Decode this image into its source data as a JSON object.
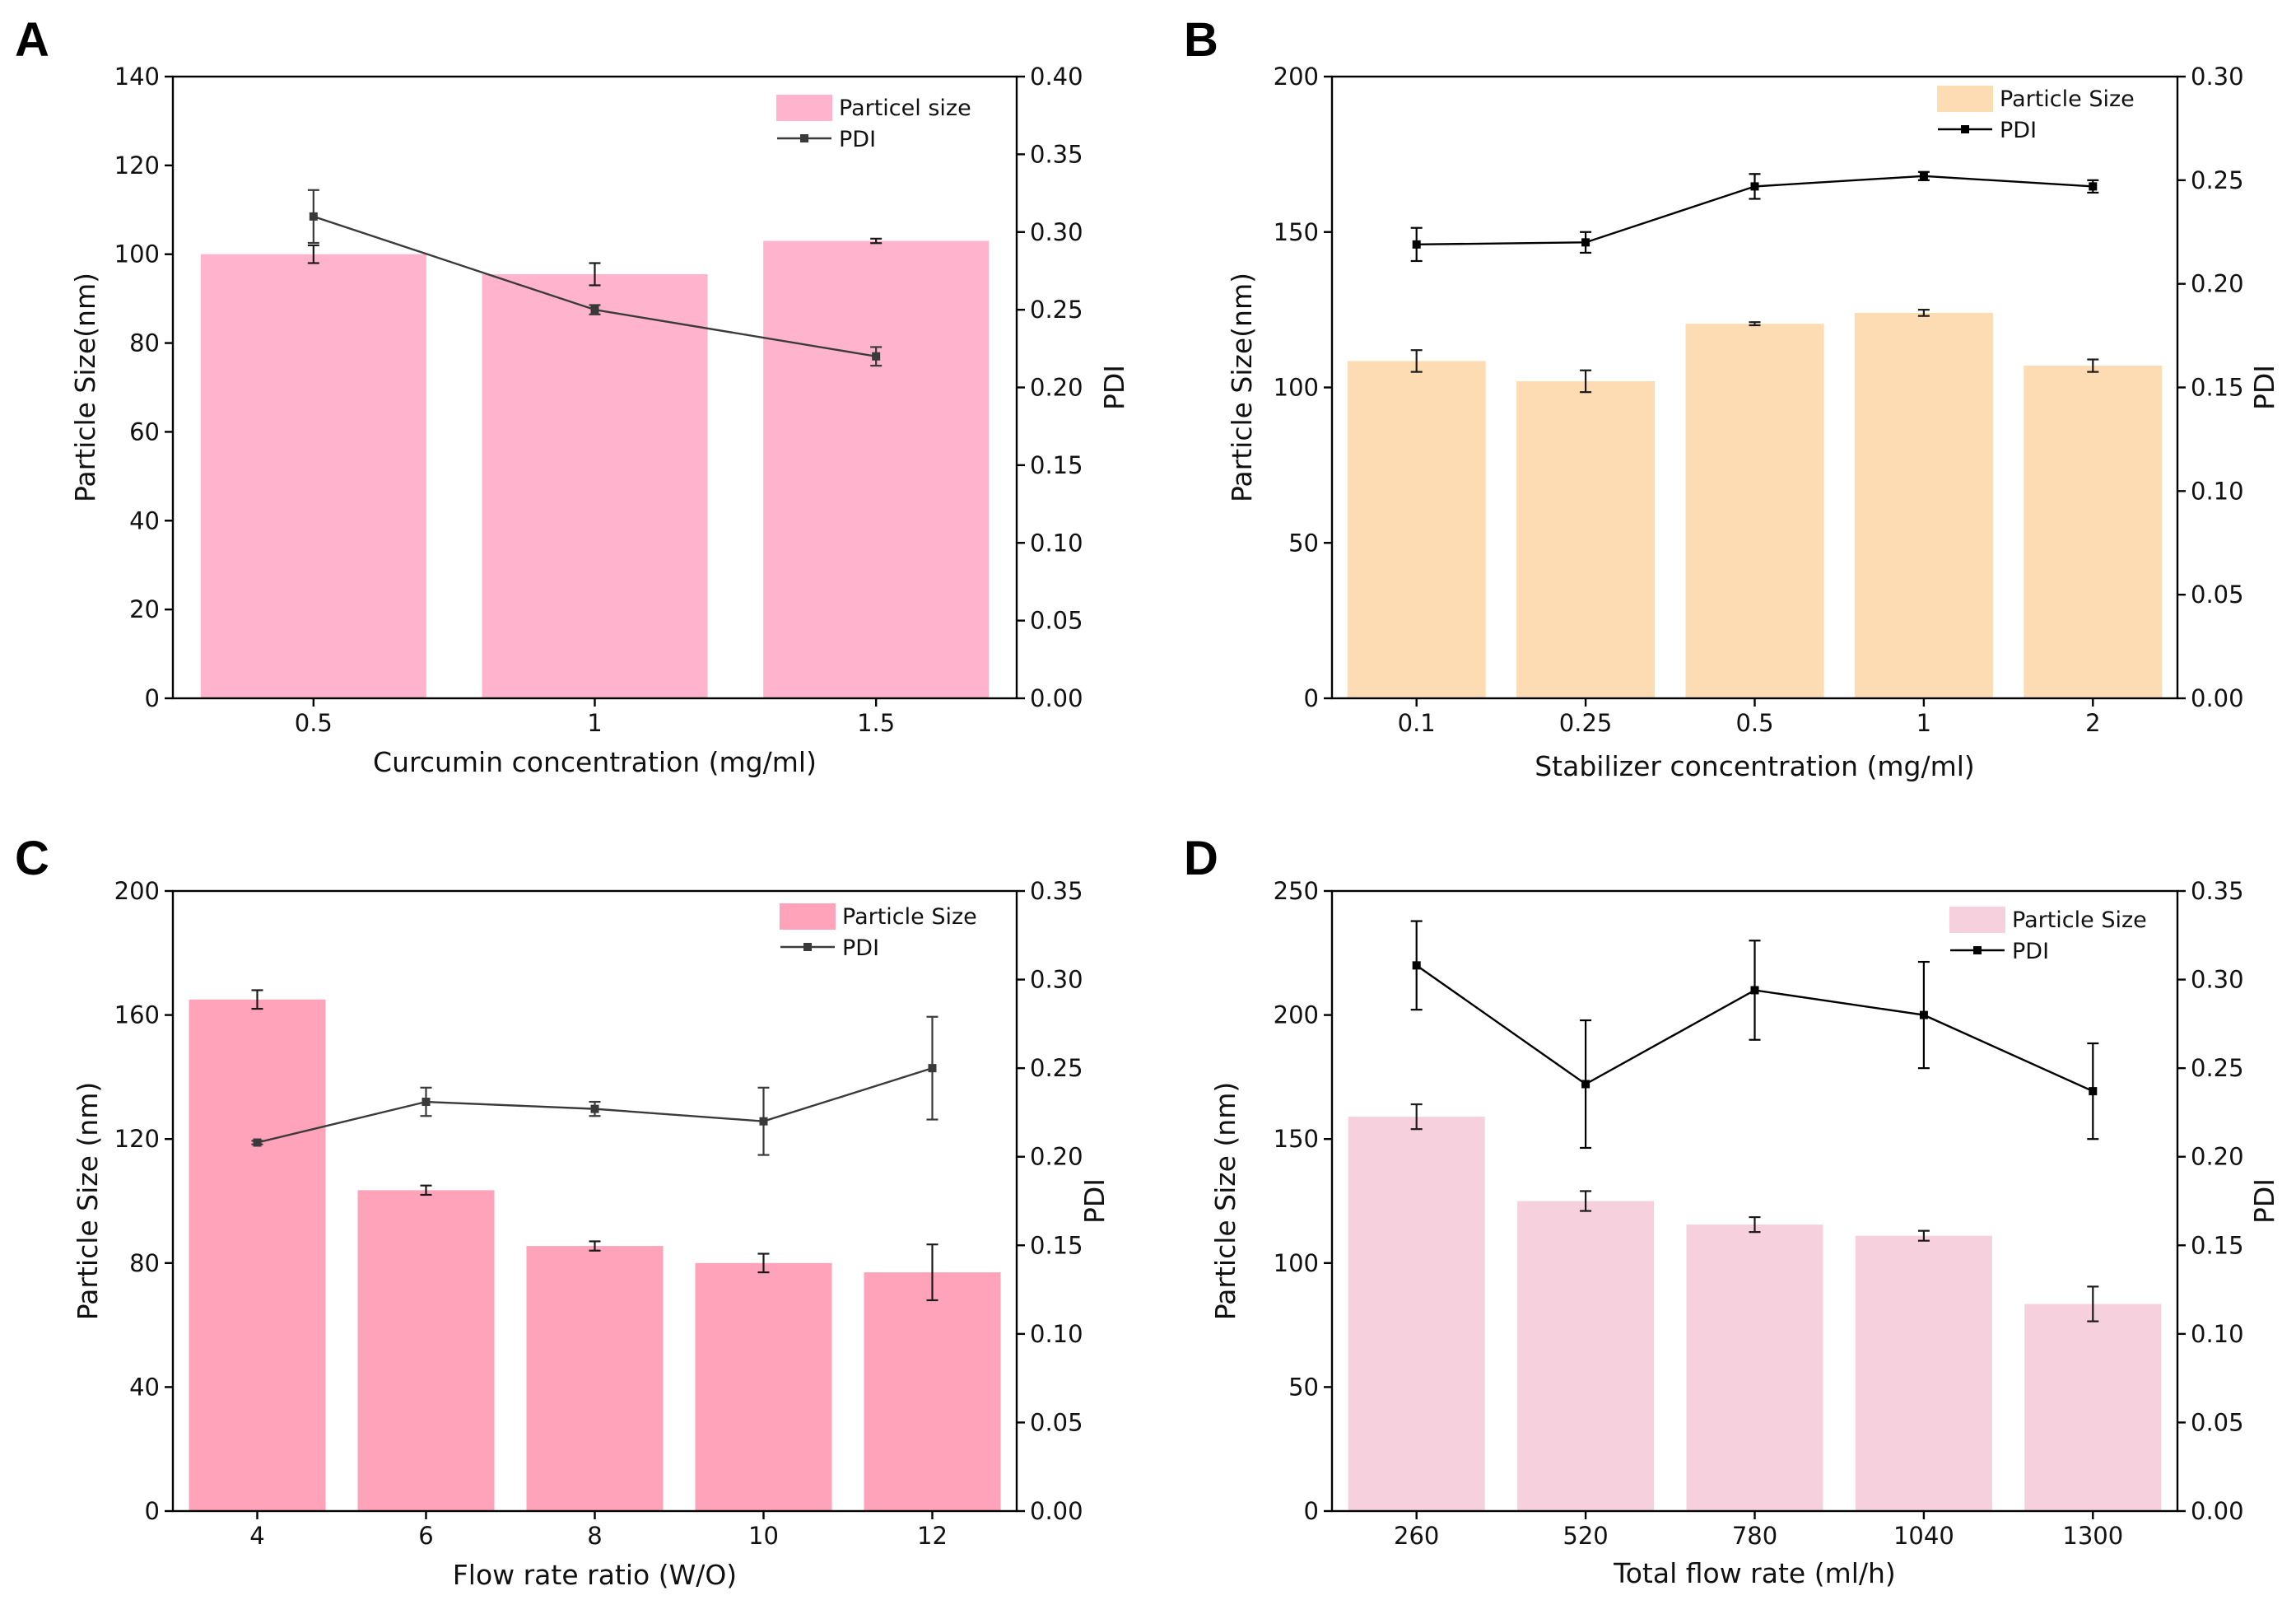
{
  "figure": {
    "background": "#ffffff",
    "panels": [
      "A",
      "B",
      "C",
      "D"
    ]
  },
  "chart_data": [
    {
      "panel": "A",
      "type": "bar",
      "categories": [
        "0.5",
        "1",
        "1.5"
      ],
      "xlabel": "Curcumin concentration (mg/ml)",
      "ylabel": "Particle Size(nm)",
      "y2label": "PDI",
      "ylim": [
        0,
        140
      ],
      "yticks": [
        "0",
        "20",
        "40",
        "60",
        "80",
        "100",
        "120",
        "140"
      ],
      "y2lim": [
        0,
        0.4
      ],
      "y2ticks": [
        "0.00",
        "0.05",
        "0.10",
        "0.15",
        "0.20",
        "0.25",
        "0.30",
        "0.35",
        "0.40"
      ],
      "bar_color": "#ffb3cc",
      "line_color": "#3a3a3a",
      "legend_position": "top-right",
      "legend": [
        "Particel size",
        "PDI"
      ],
      "series": [
        {
          "name": "Particel size",
          "axis": "left",
          "kind": "bar",
          "values": [
            100,
            95.5,
            103
          ],
          "errors": [
            2,
            2.5,
            0.5
          ]
        },
        {
          "name": "PDI",
          "axis": "right",
          "kind": "line",
          "values": [
            0.31,
            0.25,
            0.22
          ],
          "errors": [
            0.017,
            0.003,
            0.006
          ]
        }
      ]
    },
    {
      "panel": "B",
      "type": "bar",
      "categories": [
        "0.1",
        "0.25",
        "0.5",
        "1",
        "2"
      ],
      "xlabel": "Stabilizer concentration (mg/ml)",
      "ylabel": "Particle Size(nm)",
      "y2label": "PDI",
      "ylim": [
        0,
        200
      ],
      "yticks": [
        "0",
        "50",
        "100",
        "150",
        "200"
      ],
      "y2lim": [
        0,
        0.3
      ],
      "y2ticks": [
        "0.00",
        "0.05",
        "0.10",
        "0.15",
        "0.20",
        "0.25",
        "0.30"
      ],
      "bar_color": "#fddcb3",
      "line_color": "#000000",
      "legend_position": "top-right",
      "legend": [
        "Particle Size",
        "PDI"
      ],
      "series": [
        {
          "name": "Particle Size",
          "axis": "left",
          "kind": "bar",
          "values": [
            108.5,
            102,
            120.5,
            124,
            107
          ],
          "errors": [
            3.5,
            3.5,
            0.5,
            1,
            2
          ]
        },
        {
          "name": "PDI",
          "axis": "right",
          "kind": "line",
          "values": [
            0.219,
            0.22,
            0.247,
            0.252,
            0.247
          ],
          "errors": [
            0.008,
            0.005,
            0.006,
            0.002,
            0.003
          ]
        }
      ]
    },
    {
      "panel": "C",
      "type": "bar",
      "categories": [
        "4",
        "6",
        "8",
        "10",
        "12"
      ],
      "xlabel": "Flow rate ratio (W/O)",
      "ylabel": "Particle Size (nm)",
      "y2label": "PDI",
      "ylim": [
        0,
        200
      ],
      "yticks": [
        "0",
        "40",
        "80",
        "120",
        "160",
        "200"
      ],
      "y2lim": [
        0,
        0.35
      ],
      "y2ticks": [
        "0.00",
        "0.05",
        "0.10",
        "0.15",
        "0.20",
        "0.25",
        "0.30",
        "0.35"
      ],
      "bar_color": "#ffa3ba",
      "line_color": "#3a3a3a",
      "legend_position": "top-right",
      "legend": [
        "Particle Size",
        "PDI"
      ],
      "series": [
        {
          "name": "Particle Size",
          "axis": "left",
          "kind": "bar",
          "values": [
            165,
            103.5,
            85.5,
            80,
            77
          ],
          "errors": [
            3,
            1.5,
            1.5,
            3,
            9
          ]
        },
        {
          "name": "PDI",
          "axis": "right",
          "kind": "line",
          "values": [
            0.208,
            0.231,
            0.227,
            0.22,
            0.25
          ],
          "errors": [
            0.001,
            0.008,
            0.004,
            0.019,
            0.029
          ]
        }
      ]
    },
    {
      "panel": "D",
      "type": "bar",
      "categories": [
        "260",
        "520",
        "780",
        "1040",
        "1300"
      ],
      "xlabel": "Total flow rate (ml/h)",
      "ylabel": "Particle Size (nm)",
      "y2label": "PDI",
      "ylim": [
        0,
        250
      ],
      "yticks": [
        "0",
        "50",
        "100",
        "150",
        "200",
        "250"
      ],
      "y2lim": [
        0,
        0.35
      ],
      "y2ticks": [
        "0.00",
        "0.05",
        "0.10",
        "0.15",
        "0.20",
        "0.25",
        "0.30",
        "0.35"
      ],
      "bar_color": "#f6d0dd",
      "line_color": "#000000",
      "legend_position": "top-right",
      "legend": [
        "Particle Size",
        "PDI"
      ],
      "series": [
        {
          "name": "Particle Size",
          "axis": "left",
          "kind": "bar",
          "values": [
            159,
            125,
            115.5,
            111,
            83.5
          ],
          "errors": [
            5,
            4,
            3,
            2,
            7
          ]
        },
        {
          "name": "PDI",
          "axis": "right",
          "kind": "line",
          "values": [
            0.308,
            0.241,
            0.294,
            0.28,
            0.237
          ],
          "errors": [
            0.025,
            0.036,
            0.028,
            0.03,
            0.027
          ]
        }
      ]
    }
  ]
}
